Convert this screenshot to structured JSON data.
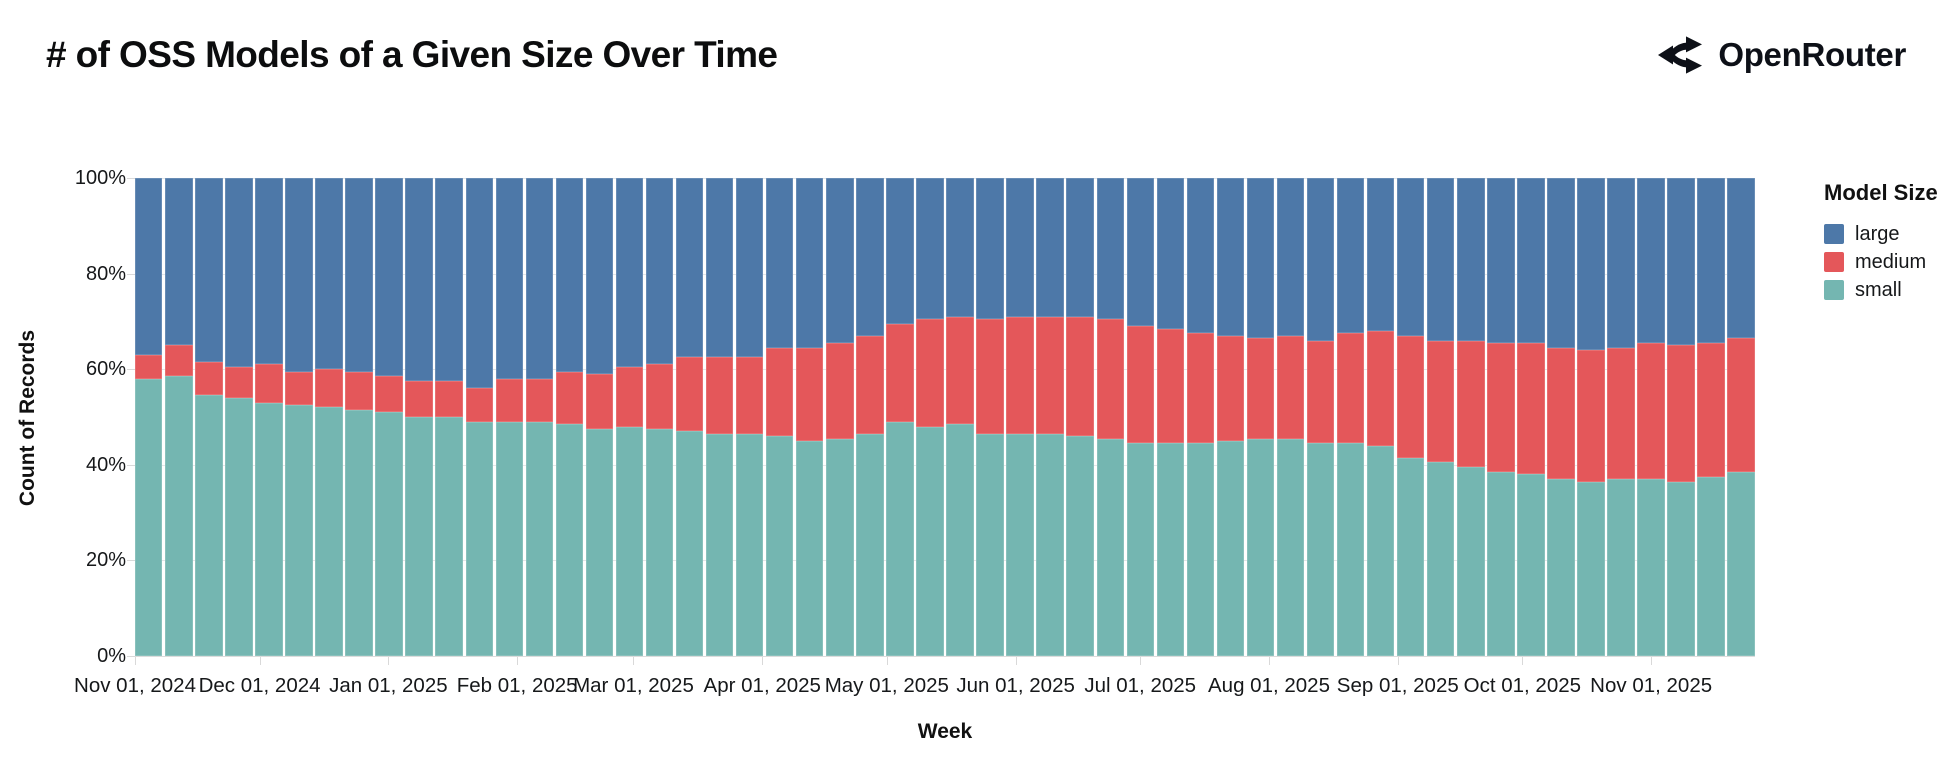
{
  "header": {
    "title": "# of OSS Models of a Given Size Over Time",
    "brand": "OpenRouter"
  },
  "legend": {
    "title": "Model Size",
    "items": [
      {
        "label": "large",
        "color": "#4d78a8"
      },
      {
        "label": "medium",
        "color": "#e4575a"
      },
      {
        "label": "small",
        "color": "#74b6b1"
      }
    ]
  },
  "axes": {
    "y_title": "Count of Records",
    "x_title": "Week",
    "y_ticks": [
      "100%",
      "80%",
      "60%",
      "40%",
      "20%",
      "0%"
    ]
  },
  "chart_data": {
    "type": "bar",
    "stacked": true,
    "normalized": "percent",
    "title": "# of OSS Models of a Given Size Over Time",
    "xlabel": "Week",
    "ylabel": "Count of Records",
    "ylim": [
      0,
      100
    ],
    "grid": true,
    "legend_position": "right",
    "x_tick_labels": [
      "Nov 01, 2024",
      "Dec 01, 2024",
      "Jan 01, 2025",
      "Feb 01, 2025",
      "Mar 01, 2025",
      "Apr 01, 2025",
      "May 01, 2025",
      "Jun 01, 2025",
      "Jul 01, 2025",
      "Aug 01, 2025",
      "Sep 01, 2025",
      "Oct 01, 2025",
      "Nov 01, 2025"
    ],
    "x_tick_pos": [
      0,
      0.0769,
      0.1564,
      0.2359,
      0.3077,
      0.3872,
      0.4641,
      0.5436,
      0.6205,
      0.7,
      0.7795,
      0.8564,
      0.9359
    ],
    "categories": [
      "Nov 01, 2024",
      "Nov 08, 2024",
      "Nov 15, 2024",
      "Nov 22, 2024",
      "Nov 29, 2024",
      "Dec 06, 2024",
      "Dec 13, 2024",
      "Dec 20, 2024",
      "Dec 27, 2024",
      "Jan 03, 2025",
      "Jan 10, 2025",
      "Jan 17, 2025",
      "Jan 24, 2025",
      "Jan 31, 2025",
      "Feb 07, 2025",
      "Feb 14, 2025",
      "Feb 21, 2025",
      "Feb 28, 2025",
      "Mar 07, 2025",
      "Mar 14, 2025",
      "Mar 21, 2025",
      "Mar 28, 2025",
      "Apr 04, 2025",
      "Apr 11, 2025",
      "Apr 18, 2025",
      "Apr 25, 2025",
      "May 02, 2025",
      "May 09, 2025",
      "May 16, 2025",
      "May 23, 2025",
      "May 30, 2025",
      "Jun 06, 2025",
      "Jun 13, 2025",
      "Jun 20, 2025",
      "Jun 27, 2025",
      "Jul 04, 2025",
      "Jul 11, 2025",
      "Jul 18, 2025",
      "Jul 25, 2025",
      "Aug 01, 2025",
      "Aug 08, 2025",
      "Aug 15, 2025",
      "Aug 22, 2025",
      "Aug 29, 2025",
      "Sep 05, 2025",
      "Sep 12, 2025",
      "Sep 19, 2025",
      "Sep 26, 2025",
      "Oct 03, 2025",
      "Oct 10, 2025",
      "Oct 17, 2025",
      "Oct 24, 2025",
      "Oct 31, 2025",
      "Nov 07, 2025"
    ],
    "series": [
      {
        "name": "large",
        "color": "#4d78a8",
        "values": [
          37,
          35,
          38.5,
          39.5,
          39,
          40.5,
          40,
          40.5,
          41.5,
          42.5,
          42.5,
          44,
          42,
          42,
          40.5,
          41,
          39.5,
          39,
          37.5,
          37.5,
          37.5,
          35.5,
          35.5,
          34.5,
          33,
          30.5,
          29.5,
          29,
          29.5,
          29,
          29,
          29,
          29.5,
          31,
          31.5,
          32.5,
          33,
          33.5,
          33,
          34,
          32.5,
          32,
          33,
          34,
          34,
          34.5,
          34.5,
          35.5,
          36,
          35.5,
          34.5,
          35,
          34.5,
          33.5
        ]
      },
      {
        "name": "medium",
        "color": "#e4575a",
        "values": [
          5,
          6.5,
          7,
          6.5,
          8,
          7,
          8,
          8,
          7.5,
          7.5,
          7.5,
          7,
          9,
          9,
          11,
          11.5,
          12.5,
          13.5,
          15.5,
          16,
          16,
          18.5,
          19.5,
          20,
          20.5,
          20.5,
          22.5,
          22.5,
          24,
          24.5,
          24.5,
          25,
          25,
          24.5,
          24,
          23,
          22,
          21,
          21.5,
          21.5,
          23,
          24,
          25.5,
          25.5,
          26.5,
          27,
          27.5,
          27.5,
          27.5,
          27.5,
          28.5,
          28.5,
          28,
          28
        ]
      },
      {
        "name": "small",
        "color": "#74b6b1",
        "values": [
          58,
          58.5,
          54.5,
          54,
          53,
          52.5,
          52,
          51.5,
          51,
          50,
          50,
          49,
          49,
          49,
          48.5,
          47.5,
          48,
          47.5,
          47,
          46.5,
          46.5,
          46,
          45,
          45.5,
          46.5,
          49,
          48,
          48.5,
          46.5,
          46.5,
          46.5,
          46,
          45.5,
          44.5,
          44.5,
          44.5,
          45,
          45.5,
          45.5,
          44.5,
          44.5,
          44,
          41.5,
          40.5,
          39.5,
          38.5,
          38,
          37,
          36.5,
          37,
          37,
          36.5,
          37.5,
          38.5
        ]
      }
    ]
  }
}
